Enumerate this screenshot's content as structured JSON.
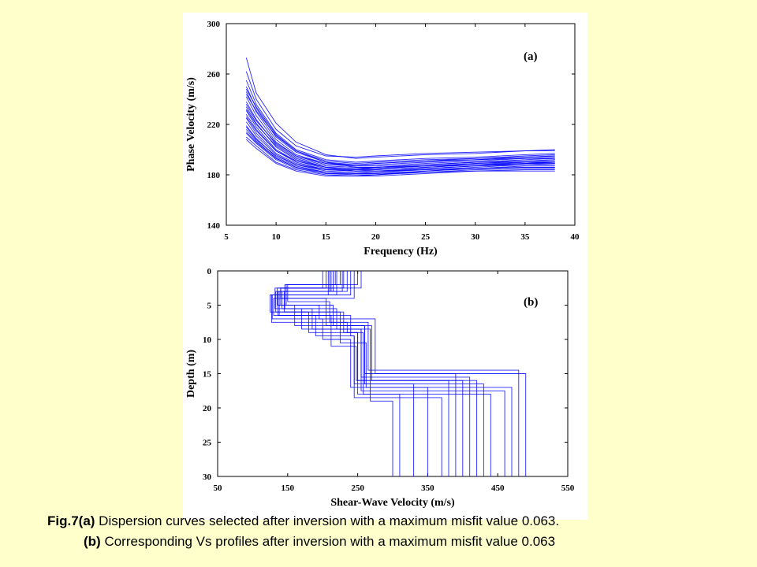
{
  "caption": {
    "line1_label": "Fig.7(a)",
    "line1_text": " Dispersion curves selected after inversion with a maximum misfit value 0.063.",
    "line2_label": "(b)",
    "line2_text": " Corresponding Vs profiles after inversion with a maximum misfit value 0.063"
  },
  "colors": {
    "page_background": "#ffffcc",
    "panel_background": "#ffffff",
    "curve": "#0000ff"
  },
  "chart_data": [
    {
      "type": "line",
      "panel_label": "(a)",
      "xlabel": "Frequency (Hz)",
      "ylabel": "Phase Velocity (m/s)",
      "xlim": [
        5,
        40
      ],
      "ylim": [
        140,
        300
      ],
      "xticks": [
        5,
        10,
        15,
        20,
        25,
        30,
        35,
        40
      ],
      "yticks": [
        140,
        180,
        220,
        260,
        300
      ],
      "grid": false,
      "legend": "none",
      "series": [
        {
          "x": [
            7,
            8,
            10,
            12,
            15,
            18,
            20,
            25,
            30,
            35,
            38
          ],
          "y": [
            273,
            245,
            221,
            206,
            196,
            193,
            194,
            196,
            197,
            199,
            200
          ]
        },
        {
          "x": [
            7,
            8,
            10,
            12,
            15,
            18,
            20,
            25,
            30,
            35,
            38
          ],
          "y": [
            262,
            240,
            216,
            203,
            195,
            194,
            195,
            197,
            198,
            199,
            199
          ]
        },
        {
          "x": [
            7,
            8,
            10,
            12,
            15,
            18,
            20,
            25,
            30,
            35,
            38
          ],
          "y": [
            255,
            236,
            213,
            200,
            192,
            190,
            191,
            193,
            194,
            196,
            197
          ]
        },
        {
          "x": [
            7,
            8,
            10,
            12,
            15,
            18,
            20,
            25,
            30,
            35,
            38
          ],
          "y": [
            250,
            233,
            210,
            198,
            190,
            188,
            189,
            191,
            193,
            195,
            196
          ]
        },
        {
          "x": [
            7,
            8,
            10,
            12,
            15,
            18,
            20,
            25,
            30,
            35,
            38
          ],
          "y": [
            246,
            230,
            208,
            196,
            189,
            187,
            188,
            190,
            192,
            194,
            195
          ]
        },
        {
          "x": [
            7,
            8,
            10,
            12,
            15,
            18,
            20,
            25,
            30,
            35,
            38
          ],
          "y": [
            242,
            227,
            206,
            195,
            188,
            187,
            187,
            189,
            191,
            193,
            194
          ]
        },
        {
          "x": [
            7,
            8,
            10,
            12,
            15,
            18,
            20,
            25,
            30,
            35,
            38
          ],
          "y": [
            238,
            224,
            204,
            194,
            187,
            186,
            186,
            188,
            190,
            192,
            193
          ]
        },
        {
          "x": [
            7,
            8,
            10,
            12,
            15,
            18,
            20,
            25,
            30,
            35,
            38
          ],
          "y": [
            234,
            221,
            202,
            192,
            186,
            185,
            185,
            187,
            189,
            191,
            192
          ]
        },
        {
          "x": [
            7,
            8,
            10,
            12,
            15,
            18,
            20,
            25,
            30,
            35,
            38
          ],
          "y": [
            231,
            218,
            200,
            191,
            185,
            184,
            185,
            187,
            189,
            190,
            191
          ]
        },
        {
          "x": [
            7,
            8,
            10,
            12,
            15,
            18,
            20,
            25,
            30,
            35,
            38
          ],
          "y": [
            228,
            216,
            199,
            190,
            184,
            183,
            184,
            186,
            188,
            190,
            190
          ]
        },
        {
          "x": [
            7,
            8,
            10,
            12,
            15,
            18,
            20,
            25,
            30,
            35,
            38
          ],
          "y": [
            225,
            213,
            197,
            189,
            184,
            183,
            183,
            185,
            187,
            189,
            190
          ]
        },
        {
          "x": [
            7,
            8,
            10,
            12,
            15,
            18,
            20,
            25,
            30,
            35,
            38
          ],
          "y": [
            222,
            211,
            196,
            188,
            183,
            182,
            182,
            185,
            187,
            188,
            189
          ]
        },
        {
          "x": [
            7,
            8,
            10,
            12,
            15,
            18,
            20,
            25,
            30,
            35,
            38
          ],
          "y": [
            219,
            209,
            194,
            187,
            182,
            181,
            182,
            184,
            186,
            188,
            188
          ]
        },
        {
          "x": [
            7,
            8,
            10,
            12,
            15,
            18,
            20,
            25,
            30,
            35,
            38
          ],
          "y": [
            216,
            207,
            193,
            186,
            181,
            181,
            181,
            183,
            185,
            187,
            187
          ]
        },
        {
          "x": [
            7,
            8,
            10,
            12,
            15,
            18,
            20,
            25,
            30,
            35,
            38
          ],
          "y": [
            213,
            205,
            192,
            185,
            181,
            180,
            180,
            183,
            185,
            186,
            186
          ]
        },
        {
          "x": [
            7,
            8,
            10,
            12,
            15,
            18,
            20,
            25,
            30,
            35,
            38
          ],
          "y": [
            210,
            203,
            190,
            184,
            180,
            179,
            180,
            182,
            184,
            185,
            185
          ]
        },
        {
          "x": [
            7,
            8,
            10,
            12,
            15,
            18,
            20,
            25,
            30,
            35,
            38
          ],
          "y": [
            208,
            201,
            189,
            183,
            179,
            179,
            179,
            181,
            183,
            184,
            184
          ]
        },
        {
          "x": [
            7,
            8,
            10,
            12,
            15,
            18,
            20,
            25,
            30,
            35,
            38
          ],
          "y": [
            244,
            231,
            211,
            199,
            191,
            189,
            190,
            192,
            193,
            194,
            195
          ]
        },
        {
          "x": [
            7,
            8,
            10,
            12,
            15,
            18,
            20,
            25,
            30,
            35,
            38
          ],
          "y": [
            236,
            223,
            205,
            195,
            189,
            188,
            189,
            191,
            192,
            193,
            193
          ]
        },
        {
          "x": [
            7,
            8,
            10,
            12,
            15,
            18,
            20,
            25,
            30,
            35,
            38
          ],
          "y": [
            226,
            215,
            199,
            191,
            186,
            185,
            186,
            188,
            190,
            191,
            192
          ]
        },
        {
          "x": [
            7,
            8,
            10,
            12,
            15,
            18,
            20,
            25,
            30,
            35,
            38
          ],
          "y": [
            218,
            208,
            195,
            188,
            184,
            184,
            184,
            186,
            188,
            189,
            190
          ]
        },
        {
          "x": [
            7,
            8,
            10,
            12,
            15,
            18,
            20,
            25,
            30,
            35,
            38
          ],
          "y": [
            248,
            234,
            212,
            199,
            190,
            186,
            186,
            187,
            188,
            189,
            189
          ]
        },
        {
          "x": [
            7,
            8,
            10,
            12,
            15,
            18,
            20,
            25,
            30,
            35,
            38
          ],
          "y": [
            232,
            220,
            203,
            193,
            186,
            183,
            183,
            184,
            185,
            186,
            186
          ]
        },
        {
          "x": [
            7,
            8,
            10,
            12,
            15,
            18,
            20,
            25,
            30,
            35,
            38
          ],
          "y": [
            214,
            206,
            193,
            186,
            182,
            181,
            181,
            182,
            183,
            183,
            183
          ]
        }
      ]
    },
    {
      "type": "line",
      "panel_label": "(b)",
      "xlabel": "Shear-Wave Velocity (m/s)",
      "ylabel": "Depth (m)",
      "xlim": [
        50,
        550
      ],
      "ylim": [
        30,
        0
      ],
      "xticks": [
        50,
        150,
        250,
        350,
        450,
        550
      ],
      "yticks": [
        0,
        5,
        10,
        15,
        20,
        25,
        30
      ],
      "grid": false,
      "legend": "none",
      "series": [
        {
          "depths": [
            2.5,
            5.0,
            8.0,
            15.0
          ],
          "velocities": [
            200,
            140,
            160,
            260,
            390
          ]
        },
        {
          "depths": [
            2.5,
            5.5,
            8.5,
            15.5
          ],
          "velocities": [
            205,
            132,
            170,
            255,
            410
          ]
        },
        {
          "depths": [
            3.0,
            6.0,
            9.0,
            16.0
          ],
          "velocities": [
            210,
            145,
            180,
            250,
            380
          ]
        },
        {
          "depths": [
            3.0,
            6.5,
            9.5,
            16.5
          ],
          "velocities": [
            215,
            138,
            190,
            245,
            430
          ]
        },
        {
          "depths": [
            3.5,
            7.0,
            10.0,
            17.0
          ],
          "velocities": [
            220,
            128,
            200,
            240,
            470
          ]
        },
        {
          "depths": [
            2.0,
            4.5,
            7.5,
            14.5
          ],
          "velocities": [
            225,
            150,
            210,
            265,
            480
          ]
        },
        {
          "depths": [
            2.5,
            5.0,
            8.0,
            16.0
          ],
          "velocities": [
            230,
            135,
            215,
            270,
            400
          ]
        },
        {
          "depths": [
            3.0,
            5.5,
            8.5,
            17.5
          ],
          "velocities": [
            235,
            142,
            220,
            255,
            460
          ]
        },
        {
          "depths": [
            3.5,
            6.0,
            9.0,
            18.0
          ],
          "velocities": [
            240,
            125,
            230,
            250,
            440
          ]
        },
        {
          "depths": [
            4.0,
            6.5,
            9.5,
            18.5
          ],
          "velocities": [
            245,
            130,
            240,
            245,
            370
          ]
        },
        {
          "depths": [
            2.0,
            5.0,
            7.0,
            15.0
          ],
          "velocities": [
            250,
            148,
            195,
            275,
            490
          ]
        },
        {
          "depths": [
            2.5,
            4.0,
            8.0,
            16.5
          ],
          "velocities": [
            255,
            140,
            205,
            260,
            330
          ]
        },
        {
          "depths": [
            3.0,
            6.0,
            10.5,
            17.0
          ],
          "velocities": [
            212,
            133,
            225,
            262,
            350
          ]
        },
        {
          "depths": [
            3.5,
            7.5,
            9.0,
            18.0
          ],
          "velocities": [
            208,
            127,
            235,
            258,
            310
          ]
        },
        {
          "depths": [
            2.0,
            5.5,
            8.5,
            19.0
          ],
          "velocities": [
            218,
            146,
            185,
            268,
            300
          ]
        },
        {
          "depths": [
            3.0,
            6.5,
            11.0,
            16.0
          ],
          "velocities": [
            228,
            136,
            212,
            248,
            420
          ]
        }
      ]
    }
  ]
}
